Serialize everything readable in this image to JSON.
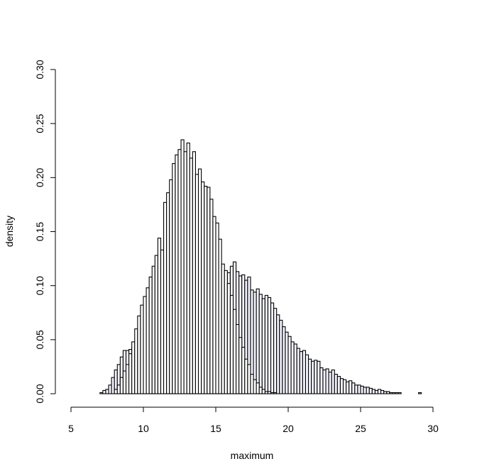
{
  "chart_data": {
    "type": "bar",
    "subtype": "overlaid-histogram",
    "title": "",
    "xlabel": "maximum",
    "ylabel": "density",
    "xlim": [
      5,
      30
    ],
    "ylim": [
      0,
      0.3
    ],
    "xticks": [
      5,
      10,
      15,
      20,
      25,
      30
    ],
    "yticks": [
      0.0,
      0.05,
      0.1,
      0.15,
      0.2,
      0.25,
      0.3
    ],
    "ytick_labels": [
      "0.00",
      "0.05",
      "0.10",
      "0.15",
      "0.20",
      "0.25",
      "0.30"
    ],
    "grid": false,
    "legend": "none",
    "bin_width": 0.2,
    "series": [
      {
        "fill": "#f4f4ff",
        "bin_start": 7.0,
        "values": [
          0.001,
          0.003,
          0.004,
          0.008,
          0.015,
          0.022,
          0.027,
          0.034,
          0.04,
          0.04,
          0.041,
          0.043,
          0.048,
          0.052,
          0.058,
          0.063,
          0.068,
          0.072,
          0.078,
          0.084,
          0.088,
          0.092,
          0.096,
          0.1,
          0.104,
          0.107,
          0.108,
          0.106,
          0.112,
          0.11,
          0.108,
          0.102,
          0.106,
          0.104,
          0.11,
          0.105,
          0.112,
          0.108,
          0.104,
          0.115,
          0.118,
          0.116,
          0.108,
          0.107,
          0.112,
          0.118,
          0.122,
          0.113,
          0.109,
          0.11,
          0.105,
          0.108,
          0.096,
          0.094,
          0.097,
          0.092,
          0.088,
          0.091,
          0.089,
          0.084,
          0.079,
          0.073,
          0.068,
          0.062,
          0.057,
          0.053,
          0.048,
          0.046,
          0.042,
          0.039,
          0.04,
          0.036,
          0.032,
          0.03,
          0.031,
          0.03,
          0.024,
          0.022,
          0.023,
          0.02,
          0.022,
          0.018,
          0.016,
          0.014,
          0.013,
          0.011,
          0.012,
          0.01,
          0.008,
          0.008,
          0.007,
          0.006,
          0.006,
          0.005,
          0.004,
          0.003,
          0.004,
          0.003,
          0.002,
          0.002,
          0.001,
          0.001,
          0.001,
          0.001,
          0.0,
          0.0,
          0.0,
          0.0,
          0.0,
          0.0,
          0.001
        ]
      },
      {
        "fill": "#ffffff",
        "bin_start": 8.0,
        "values": [
          0.004,
          0.008,
          0.015,
          0.021,
          0.027,
          0.037,
          0.048,
          0.06,
          0.072,
          0.082,
          0.09,
          0.098,
          0.108,
          0.118,
          0.128,
          0.144,
          0.133,
          0.177,
          0.186,
          0.198,
          0.213,
          0.221,
          0.226,
          0.235,
          0.224,
          0.232,
          0.218,
          0.224,
          0.203,
          0.208,
          0.196,
          0.192,
          0.191,
          0.18,
          0.164,
          0.158,
          0.143,
          0.12,
          0.114,
          0.102,
          0.091,
          0.078,
          0.064,
          0.052,
          0.043,
          0.032,
          0.027,
          0.018,
          0.013,
          0.01,
          0.006,
          0.004,
          0.002,
          0.002,
          0.001,
          0.001,
          0.0,
          0.0,
          0.0,
          0.0,
          0.0,
          0.0,
          0.0,
          0.0,
          0.0,
          0.0,
          0.0,
          0.0,
          0.0,
          0.0,
          0.0,
          0.0,
          0.0,
          0.0,
          0.0,
          0.0,
          0.0,
          0.0,
          0.0,
          0.0,
          0.0,
          0.0,
          0.0,
          0.0,
          0.0,
          0.0,
          0.0,
          0.0,
          0.0,
          0.0,
          0.0,
          0.0,
          0.0,
          0.0,
          0.0,
          0.0,
          0.0,
          0.0,
          0.0,
          0.0
        ]
      }
    ]
  }
}
